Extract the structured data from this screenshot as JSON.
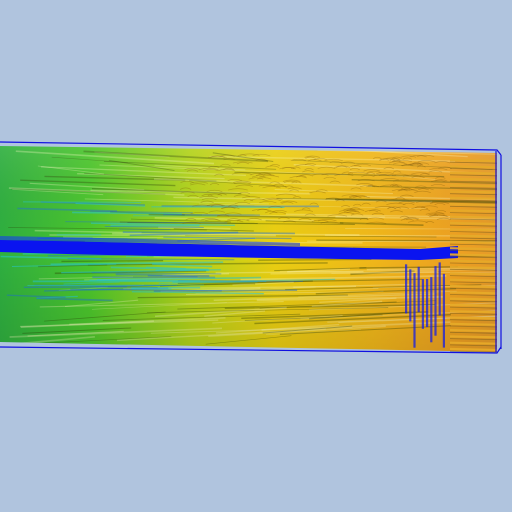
{
  "viewport": {
    "background_color": "#b0c4de",
    "outline_color": "#1010e0",
    "core_color": "#0a14f0"
  },
  "scene": {
    "colormap": [
      "#1a6fd0",
      "#22c07a",
      "#3cc83c",
      "#9ad21e",
      "#e8d012",
      "#f0b418",
      "#ea961c"
    ]
  }
}
